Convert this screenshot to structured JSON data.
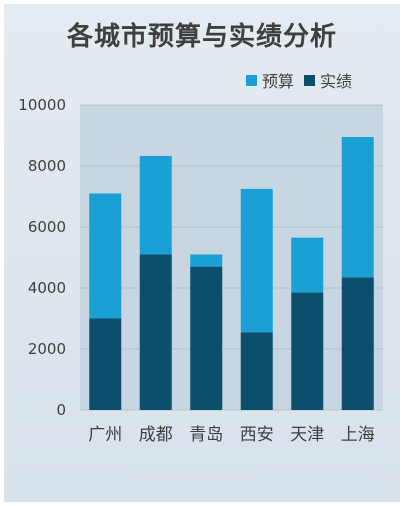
{
  "chart_data": {
    "type": "bar",
    "stacked": true,
    "title": "各城市预算与实绩分析",
    "categories": [
      "广州",
      "成都",
      "青岛",
      "西安",
      "天津",
      "上海"
    ],
    "series": [
      {
        "name": "实绩",
        "values": [
          3000,
          5100,
          4700,
          2550,
          3850,
          4350
        ],
        "color": "#0b4f6c"
      },
      {
        "name": "预算",
        "values": [
          4100,
          3230,
          400,
          4700,
          1800,
          4600
        ],
        "color": "#1aa0d4"
      }
    ],
    "ylim": [
      0,
      10000
    ],
    "yticks": [
      "0",
      "2000",
      "4000",
      "6000",
      "8000",
      "10000"
    ],
    "grid": true,
    "legend_position": "top-right"
  },
  "legend": {
    "items": [
      {
        "label": "预算",
        "color": "#1aa0d4"
      },
      {
        "label": "实绩",
        "color": "#0b4f6c"
      }
    ]
  }
}
